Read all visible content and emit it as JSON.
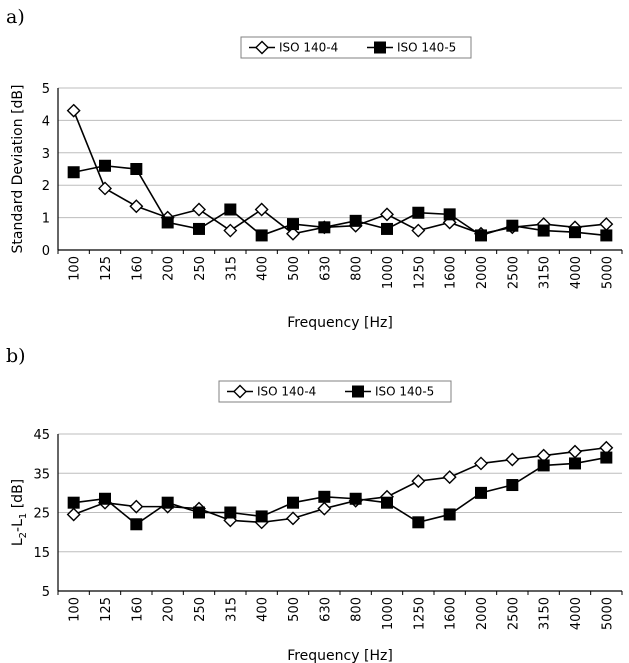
{
  "panels": {
    "a": "a)",
    "b": "b)"
  },
  "colors": {
    "line": "#000000",
    "grid": "#bdbdbd",
    "legend_border": "#808080"
  },
  "chart_data": [
    {
      "type": "line",
      "title": "",
      "xlabel": "Frequency [Hz]",
      "ylabel": "Standard Deviation [dB]",
      "ylim": [
        0,
        5
      ],
      "yticks": [
        0,
        1,
        2,
        3,
        4,
        5
      ],
      "grid": true,
      "legend": "top-center",
      "categories": [
        "100",
        "125",
        "160",
        "200",
        "250",
        "315",
        "400",
        "500",
        "630",
        "800",
        "1000",
        "1250",
        "1600",
        "2000",
        "2500",
        "3150",
        "4000",
        "5000"
      ],
      "series": [
        {
          "name": "ISO 140-4",
          "marker": "diamond-open",
          "values": [
            4.3,
            1.9,
            1.35,
            1.0,
            1.25,
            0.6,
            1.25,
            0.5,
            0.7,
            0.75,
            1.1,
            0.6,
            0.85,
            0.5,
            0.7,
            0.8,
            0.7,
            0.8
          ]
        },
        {
          "name": "ISO 140-5",
          "marker": "square-filled",
          "values": [
            2.4,
            2.6,
            2.5,
            0.85,
            0.65,
            1.25,
            0.45,
            0.8,
            0.7,
            0.9,
            0.65,
            1.15,
            1.1,
            0.45,
            0.75,
            0.6,
            0.55,
            0.45
          ]
        }
      ]
    },
    {
      "type": "line",
      "title": "",
      "xlabel": "Frequency [Hz]",
      "ylabel_main": "L",
      "ylabel_sub1": "2",
      "ylabel_mid": "-L",
      "ylabel_sub2": "1",
      "ylabel_unit": " [dB]",
      "ylim": [
        5,
        45
      ],
      "yticks": [
        5,
        15,
        25,
        35,
        45
      ],
      "grid": true,
      "legend": "top-center",
      "categories": [
        "100",
        "125",
        "160",
        "200",
        "250",
        "315",
        "400",
        "500",
        "630",
        "800",
        "1000",
        "1250",
        "1600",
        "2000",
        "2500",
        "3150",
        "4000",
        "5000"
      ],
      "series": [
        {
          "name": "ISO 140-4",
          "marker": "diamond-open",
          "values": [
            24.5,
            27.5,
            26.5,
            26.5,
            26.0,
            23.0,
            22.5,
            23.5,
            26.0,
            28.0,
            29.0,
            33.0,
            34.0,
            37.5,
            38.5,
            39.5,
            40.5,
            41.5
          ]
        },
        {
          "name": "ISO 140-5",
          "marker": "square-filled",
          "values": [
            27.5,
            28.5,
            22.0,
            27.5,
            25.0,
            25.0,
            24.0,
            27.5,
            29.0,
            28.5,
            27.5,
            22.5,
            24.5,
            30.0,
            32.0,
            37.0,
            37.5,
            39.0
          ]
        }
      ]
    }
  ]
}
